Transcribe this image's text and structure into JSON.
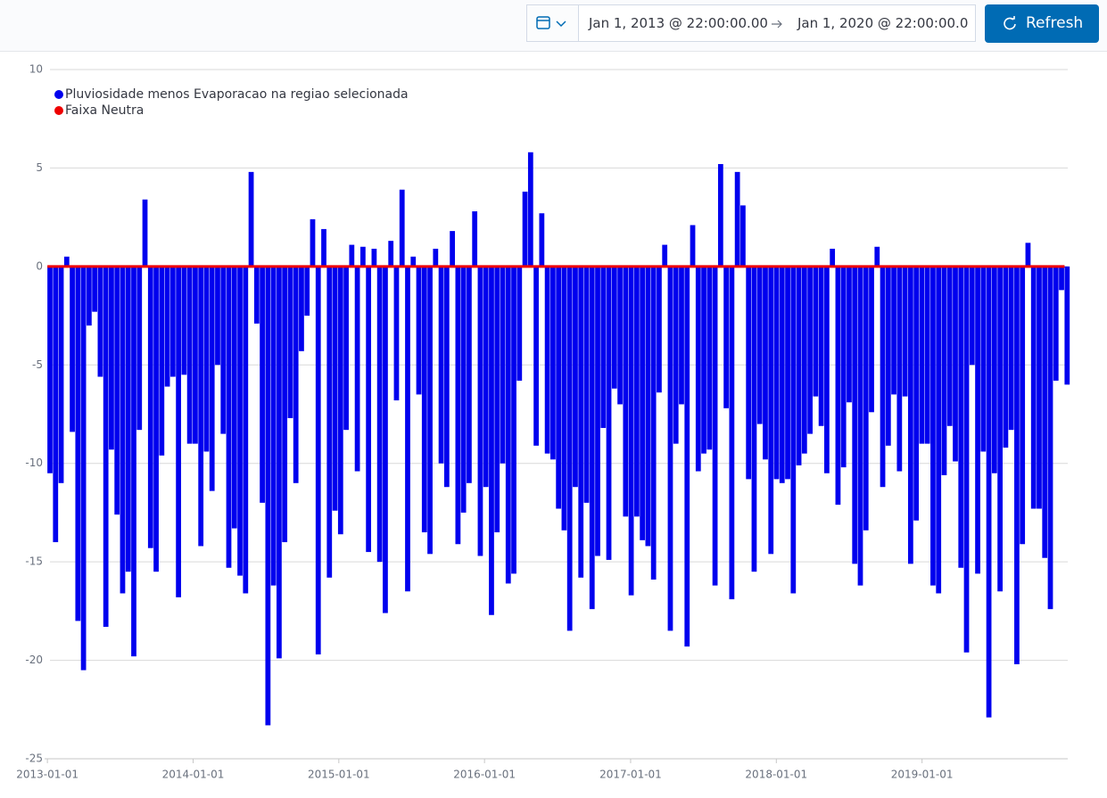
{
  "header": {
    "start": "Jan 1, 2013 @ 22:00:00.00",
    "end": "Jan 1, 2020 @ 22:00:00.0",
    "refresh": "Refresh"
  },
  "chart_data": {
    "type": "bar",
    "xlim": [
      "2012-12-25",
      "2020-01-01"
    ],
    "ylim": [
      -25,
      10
    ],
    "yticks": [
      -25,
      -20,
      -15,
      -10,
      -5,
      0,
      5,
      10
    ],
    "xticks": [
      "2013-01-01",
      "2014-01-01",
      "2015-01-01",
      "2016-01-01",
      "2017-01-01",
      "2018-01-01",
      "2019-01-01"
    ],
    "grid": true,
    "legend": "top-left",
    "x": [
      "2013-01-01",
      "2013-01-15",
      "2013-01-29",
      "2013-02-12",
      "2013-02-26",
      "2013-03-12",
      "2013-03-26",
      "2013-04-09",
      "2013-04-23",
      "2013-05-07",
      "2013-05-21",
      "2013-06-04",
      "2013-06-18",
      "2013-07-02",
      "2013-07-16",
      "2013-07-30",
      "2013-08-13",
      "2013-08-27",
      "2013-09-10",
      "2013-09-24",
      "2013-10-08",
      "2013-10-22",
      "2013-11-05",
      "2013-11-19",
      "2013-12-03",
      "2013-12-17",
      "2013-12-31",
      "2014-01-14",
      "2014-01-28",
      "2014-02-11",
      "2014-02-25",
      "2014-03-11",
      "2014-03-25",
      "2014-04-08",
      "2014-04-22",
      "2014-05-06",
      "2014-05-20",
      "2014-06-03",
      "2014-06-17",
      "2014-07-01",
      "2014-07-15",
      "2014-07-29",
      "2014-08-12",
      "2014-08-26",
      "2014-09-09",
      "2014-09-23",
      "2014-10-07",
      "2014-10-21",
      "2014-11-04",
      "2014-11-18",
      "2014-12-02",
      "2014-12-16",
      "2014-12-30",
      "2015-01-13",
      "2015-01-27",
      "2015-02-10",
      "2015-02-24",
      "2015-03-10",
      "2015-03-24",
      "2015-04-07",
      "2015-04-21",
      "2015-05-05",
      "2015-05-19",
      "2015-06-02",
      "2015-06-16",
      "2015-06-30",
      "2015-07-14",
      "2015-07-28",
      "2015-08-11",
      "2015-08-25",
      "2015-09-08",
      "2015-09-22",
      "2015-10-06",
      "2015-10-20",
      "2015-11-03",
      "2015-11-17",
      "2015-12-01",
      "2015-12-15",
      "2015-12-29",
      "2016-01-12",
      "2016-01-26",
      "2016-02-09",
      "2016-02-23",
      "2016-03-08",
      "2016-03-22",
      "2016-04-05",
      "2016-04-19",
      "2016-05-03",
      "2016-05-17",
      "2016-05-31",
      "2016-06-14",
      "2016-06-28",
      "2016-07-12",
      "2016-07-26",
      "2016-08-09",
      "2016-08-23",
      "2016-09-06",
      "2016-09-20",
      "2016-10-04",
      "2016-10-18",
      "2016-11-01",
      "2016-11-15",
      "2016-11-29",
      "2016-12-13",
      "2016-12-27",
      "2017-01-10",
      "2017-01-24",
      "2017-02-07",
      "2017-02-21",
      "2017-03-07",
      "2017-03-21",
      "2017-04-04",
      "2017-04-18",
      "2017-05-02",
      "2017-05-16",
      "2017-05-30",
      "2017-06-13",
      "2017-06-27",
      "2017-07-11",
      "2017-07-25",
      "2017-08-08",
      "2017-08-22",
      "2017-09-05",
      "2017-09-19",
      "2017-10-03",
      "2017-10-17",
      "2017-10-31",
      "2017-11-14",
      "2017-11-28",
      "2017-12-12",
      "2017-12-26",
      "2018-01-09",
      "2018-01-23",
      "2018-02-06",
      "2018-02-20",
      "2018-03-06",
      "2018-03-20",
      "2018-04-03",
      "2018-04-17",
      "2018-05-01",
      "2018-05-15",
      "2018-05-29",
      "2018-06-12",
      "2018-06-26",
      "2018-07-10",
      "2018-07-24",
      "2018-08-07",
      "2018-08-21",
      "2018-09-04",
      "2018-09-18",
      "2018-10-02",
      "2018-10-16",
      "2018-10-30",
      "2018-11-13",
      "2018-11-27",
      "2018-12-11",
      "2018-12-25",
      "2019-01-08",
      "2019-01-22",
      "2019-02-05",
      "2019-02-19",
      "2019-03-05",
      "2019-03-19",
      "2019-04-02",
      "2019-04-16",
      "2019-04-30",
      "2019-05-14",
      "2019-05-28",
      "2019-06-11",
      "2019-06-25",
      "2019-07-09",
      "2019-07-23",
      "2019-08-06",
      "2019-08-20",
      "2019-09-03",
      "2019-09-17",
      "2019-10-01",
      "2019-10-15",
      "2019-10-29",
      "2019-11-12",
      "2019-11-26",
      "2019-12-10",
      "2019-12-24"
    ],
    "series": [
      {
        "name": "Pluviosidade menos Evaporacao na regiao selecionada",
        "color": "#0000ee",
        "values": [
          -10.5,
          -14,
          -11,
          0.5,
          -8.4,
          -18,
          -20.5,
          -3,
          -2.3,
          -5.6,
          -18.3,
          -9.3,
          -12.6,
          -16.6,
          -15.5,
          -19.8,
          -8.3,
          3.4,
          -14.3,
          -15.5,
          -9.6,
          -6.1,
          -5.6,
          -16.8,
          -5.5,
          -9,
          -9,
          -14.2,
          -9.4,
          -11.4,
          -5,
          -8.5,
          -15.3,
          -13.3,
          -15.7,
          -16.6,
          4.8,
          -2.9,
          -12,
          -23.3,
          -16.2,
          -19.9,
          -14,
          -7.7,
          -11,
          -4.3,
          -2.5,
          2.4,
          -19.7,
          1.9,
          -15.8,
          -12.4,
          -13.6,
          -8.3,
          1.1,
          -10.4,
          1.0,
          -14.5,
          0.9,
          -15,
          -17.6,
          1.3,
          -6.8,
          3.9,
          -16.5,
          0.5,
          -6.5,
          -13.5,
          -14.6,
          0.9,
          -10,
          -11.2,
          1.8,
          -14.1,
          -12.5,
          -11,
          2.8,
          -14.7,
          -11.2,
          -17.7,
          -13.5,
          -10,
          -16.1,
          -15.6,
          -5.8,
          3.8,
          5.8,
          -9.1,
          2.7,
          -9.5,
          -9.8,
          -12.3,
          -13.4,
          -18.5,
          -11.2,
          -15.8,
          -12,
          -17.4,
          -14.7,
          -8.2,
          -14.9,
          -6.2,
          -7,
          -12.7,
          -16.7,
          -12.7,
          -13.9,
          -14.2,
          -15.9,
          -6.4,
          1.1,
          -18.5,
          -9,
          -7,
          -19.3,
          2.1,
          -10.4,
          -9.5,
          -9.3,
          -16.2,
          5.2,
          -7.2,
          -16.9,
          4.8,
          3.1,
          -10.8,
          -15.5,
          -8,
          -9.8,
          -14.6,
          -10.8,
          -11,
          -10.8,
          -16.6,
          -10.1,
          -9.5,
          -8.5,
          -6.6,
          -8.1,
          -10.5,
          0.9,
          -12.1,
          -10.2,
          -6.9,
          -15.1,
          -16.2,
          -13.4,
          -7.4,
          1.0,
          -11.2,
          -9.1,
          -6.5,
          -10.4,
          -6.6,
          -15.1,
          -12.9,
          -9.0,
          -9.0,
          -16.2,
          -16.6,
          -10.6,
          -8.1,
          -9.9,
          -15.3,
          -19.6,
          -5,
          -15.6,
          -9.4,
          -22.9,
          -10.5,
          -16.5,
          -9.2,
          -8.3,
          -20.2,
          -14.1,
          1.2,
          -12.3,
          -12.3,
          -14.8,
          -17.4,
          -5.8,
          -1.2,
          -6
        ]
      },
      {
        "name": "Faixa Neutra",
        "color": "#ee0000",
        "type": "line",
        "x": [
          "2013-01-01",
          "2019-12-24"
        ],
        "values": [
          0,
          0
        ]
      }
    ]
  }
}
